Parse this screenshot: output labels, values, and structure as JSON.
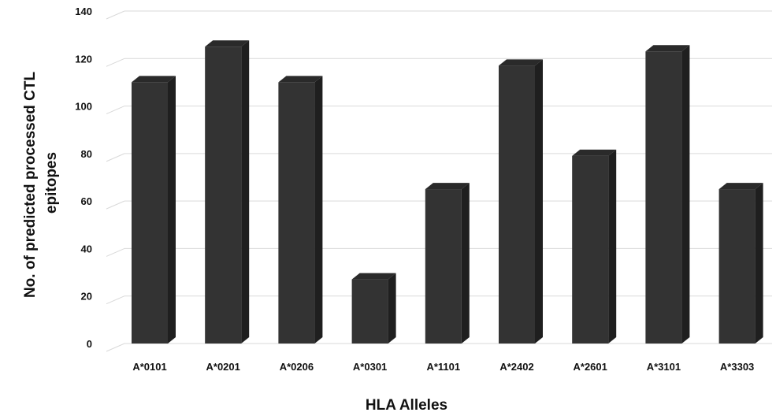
{
  "chart_data": {
    "type": "bar",
    "categories": [
      "A*0101",
      "A*0201",
      "A*0206",
      "A*0301",
      "A*1101",
      "A*2402",
      "A*2601",
      "A*3101",
      "A*3303"
    ],
    "values": [
      110,
      125,
      110,
      27,
      65,
      117,
      79,
      123,
      65
    ],
    "title": "",
    "xlabel": "HLA Alleles",
    "ylabel_lines": [
      "No. of predicted processed CTL",
      "epitopes"
    ],
    "ylim": [
      0,
      140
    ],
    "yticks": [
      0,
      20,
      40,
      60,
      80,
      100,
      120,
      140
    ],
    "grid": true,
    "legend": "none",
    "bar_color": "#333333"
  }
}
